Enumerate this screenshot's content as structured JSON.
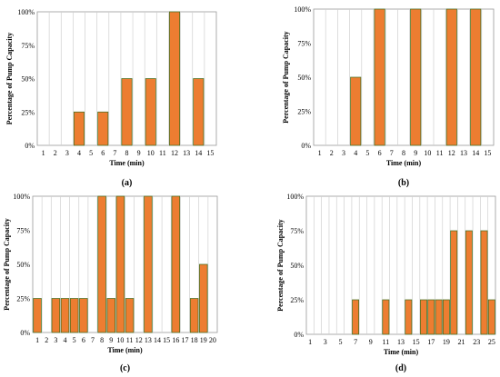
{
  "chart_data": [
    {
      "id": "a",
      "type": "bar",
      "caption": "(a)",
      "xlabel": "Time (min)",
      "ylabel": "Percentage of Pump Capacity",
      "yticks": [
        "0%",
        "25%",
        "50%",
        "75%",
        "100%"
      ],
      "ylim": [
        0,
        100
      ],
      "grid": "vertical",
      "categories": [
        "1",
        "2",
        "3",
        "4",
        "5",
        "6",
        "7",
        "8",
        "9",
        "10",
        "11",
        "12",
        "13",
        "14",
        "15"
      ],
      "values": [
        0,
        0,
        0,
        25,
        0,
        25,
        0,
        50,
        0,
        50,
        0,
        100,
        0,
        50,
        0
      ],
      "bar_color": "#ED7D31",
      "bar_edge_color": "#3B6E1E"
    },
    {
      "id": "b",
      "type": "bar",
      "caption": "(b)",
      "xlabel": "Time (min)",
      "ylabel": "Percentage of Pump Capacity",
      "yticks": [
        "0%",
        "25%",
        "50%",
        "75%",
        "100%"
      ],
      "ylim": [
        0,
        100
      ],
      "grid": "vertical",
      "categories": [
        "1",
        "2",
        "3",
        "4",
        "5",
        "6",
        "7",
        "8",
        "9",
        "10",
        "11",
        "12",
        "13",
        "14",
        "15"
      ],
      "values": [
        0,
        0,
        0,
        50,
        0,
        100,
        0,
        0,
        100,
        0,
        0,
        100,
        0,
        100,
        0
      ],
      "bar_color": "#ED7D31",
      "bar_edge_color": "#3B6E1E"
    },
    {
      "id": "c",
      "type": "bar",
      "caption": "(c)",
      "xlabel": "Time (min)",
      "ylabel": "Percentage of Pump Capacity",
      "yticks": [
        "0%",
        "25%",
        "50%",
        "75%",
        "100%"
      ],
      "ylim": [
        0,
        100
      ],
      "grid": "vertical",
      "categories": [
        "1",
        "2",
        "3",
        "4",
        "5",
        "6",
        "7",
        "8",
        "9",
        "10",
        "11",
        "12",
        "13",
        "14",
        "15",
        "16",
        "17",
        "18",
        "19",
        "20"
      ],
      "values": [
        25,
        0,
        25,
        25,
        25,
        25,
        0,
        100,
        25,
        100,
        25,
        0,
        100,
        0,
        0,
        100,
        0,
        25,
        50,
        0
      ],
      "bar_color": "#ED7D31",
      "bar_edge_color": "#3B6E1E"
    },
    {
      "id": "d",
      "type": "bar",
      "caption": "(d)",
      "xlabel": "Time (min)",
      "ylabel": "Percentage of Pump Capacity",
      "yticks": [
        "0%",
        "25%",
        "50%",
        "75%",
        "100%"
      ],
      "ylim": [
        0,
        100
      ],
      "grid": "vertical",
      "categories": [
        "1",
        "2",
        "3",
        "4",
        "5",
        "6",
        "7",
        "8",
        "9",
        "10",
        "11",
        "12",
        "13",
        "14",
        "15",
        "16",
        "17",
        "18",
        "19",
        "20",
        "21",
        "22",
        "23",
        "24",
        "25"
      ],
      "tick_labels": [
        "1",
        "",
        "3",
        "",
        "5",
        "",
        "7",
        "",
        "9",
        "",
        "11",
        "",
        "13",
        "",
        "15",
        "",
        "17",
        "",
        "19",
        "",
        "21",
        "",
        "23",
        "",
        "25"
      ],
      "values": [
        0,
        0,
        0,
        0,
        0,
        0,
        25,
        0,
        0,
        0,
        25,
        0,
        0,
        25,
        0,
        25,
        25,
        25,
        25,
        75,
        0,
        75,
        0,
        75,
        25
      ],
      "bar_color": "#ED7D31",
      "bar_edge_color": "#3B6E1E"
    }
  ]
}
